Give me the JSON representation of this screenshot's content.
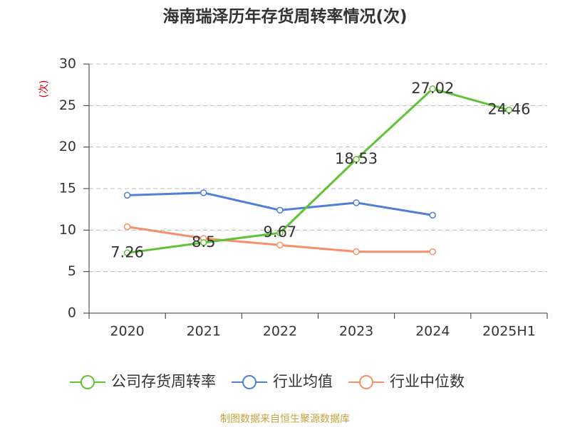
{
  "chart_data": {
    "type": "line",
    "title": "海南瑞泽历年存货周转率情况(次)",
    "y_label": "(次)",
    "categories": [
      "2020",
      "2021",
      "2022",
      "2023",
      "2024",
      "2025H1"
    ],
    "series": [
      {
        "name": "公司存货周转率",
        "color": "#5fc234",
        "values": [
          7.26,
          8.5,
          9.67,
          18.53,
          27.02,
          24.46
        ],
        "show_labels": true
      },
      {
        "name": "行业均值",
        "color": "#4f7fd6",
        "values": [
          14.2,
          14.5,
          12.4,
          13.3,
          11.8,
          null
        ]
      },
      {
        "name": "行业中位数",
        "color": "#f7906a",
        "values": [
          10.4,
          9.0,
          8.2,
          7.4,
          7.4,
          null
        ]
      }
    ],
    "ylim": [
      0,
      30
    ],
    "yticks": [
      0,
      5,
      10,
      15,
      20,
      25,
      30
    ],
    "grid": true,
    "source": "制图数据来自恒生聚源数据库"
  }
}
